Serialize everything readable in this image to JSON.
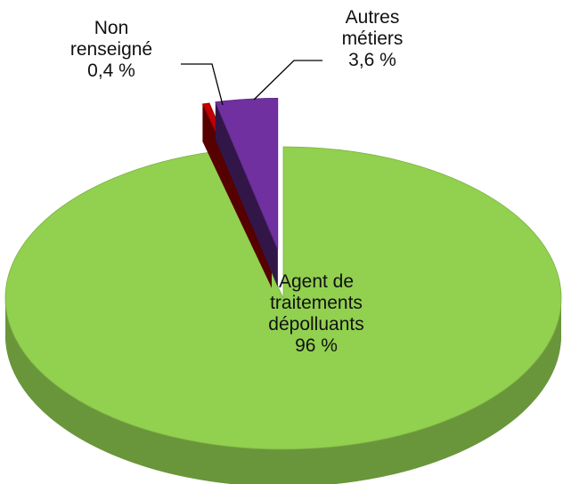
{
  "chart_data": {
    "type": "pie",
    "categories": [
      "Agent de traitements dépolluants",
      "Non renseigné",
      "Autres métiers"
    ],
    "values": [
      96,
      0.4,
      3.6
    ],
    "value_labels": [
      "96 %",
      "0,4 %",
      "3,6 %"
    ],
    "colors": [
      "#92d050",
      "#c00000",
      "#7030a0"
    ]
  }
}
